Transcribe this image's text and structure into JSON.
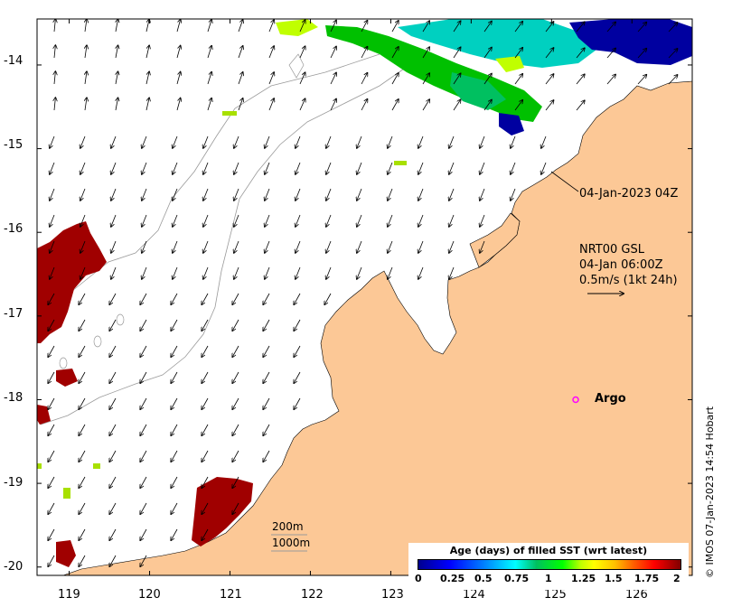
{
  "axes": {
    "x_ticks": [
      "119",
      "120",
      "121",
      "122",
      "123",
      "124",
      "125",
      "126"
    ],
    "y_ticks": [
      "-14",
      "-15",
      "-16",
      "-17",
      "-18",
      "-19",
      "-20"
    ],
    "lon_range": [
      118.6,
      126.75
    ],
    "lat_range": [
      -20.1,
      -13.45
    ]
  },
  "annotations": {
    "timestamp": "04-Jan-2023 04Z",
    "product": "NRT00 GSL",
    "product_time": "04-Jan 06:00Z",
    "scale_vector": "0.5m/s (1kt 24h)",
    "argo_label": "Argo",
    "isobath_200": "200m",
    "isobath_1000": "1000m",
    "credit": "© IMOS 07-Jan-2023 14:54 Hobart"
  },
  "argo_float": {
    "lon": 125.3,
    "lat": -18.0
  },
  "colorbar": {
    "title": "Age (days) of filled SST (wrt latest)",
    "ticks": [
      "0",
      "0.25",
      "0.5",
      "0.75",
      "1",
      "1.25",
      "1.5",
      "1.75",
      "2"
    ]
  },
  "colors": {
    "land": "#fcc896",
    "ocean": "#ffffff",
    "old_sst": "#a00000",
    "new_sst": "#00c000",
    "argo": "#ff00ff"
  }
}
